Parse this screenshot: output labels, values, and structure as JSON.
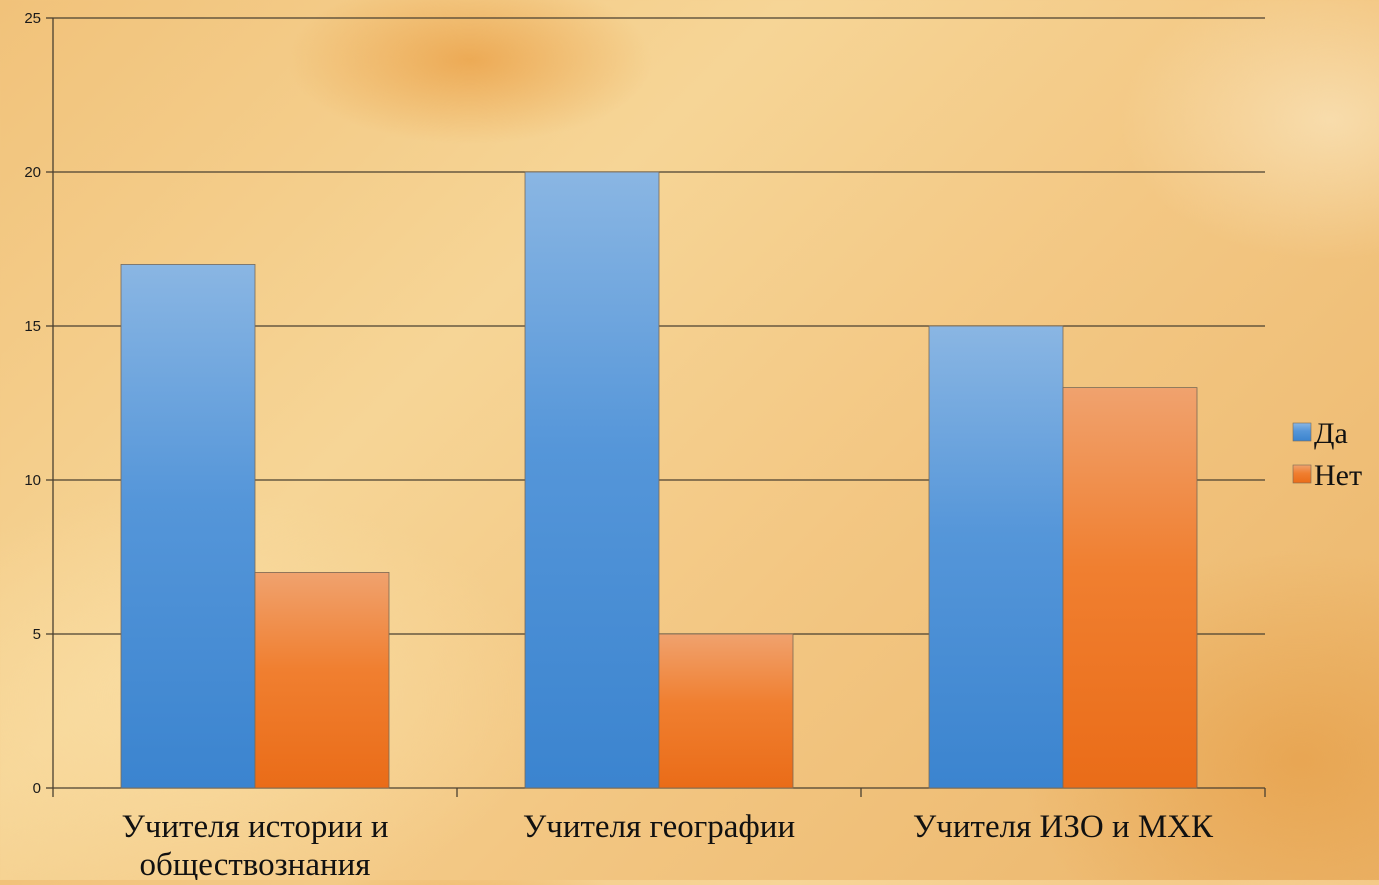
{
  "chart_data": {
    "type": "bar",
    "categories": [
      [
        "Учителя истории и",
        "обществознания"
      ],
      [
        "Учителя географии"
      ],
      [
        "Учителя ИЗО и МХК"
      ]
    ],
    "series": [
      {
        "name": "Да",
        "values": [
          17,
          20,
          15
        ],
        "color": "#4a8fd6"
      },
      {
        "name": "Нет",
        "values": [
          7,
          5,
          13
        ],
        "color": "#ef7a2a"
      }
    ],
    "ylim": [
      0,
      25
    ],
    "yticks": [
      0,
      5,
      10,
      15,
      20,
      25
    ],
    "grid": true,
    "legend": "right",
    "title": "",
    "xlabel": "",
    "ylabel": ""
  }
}
